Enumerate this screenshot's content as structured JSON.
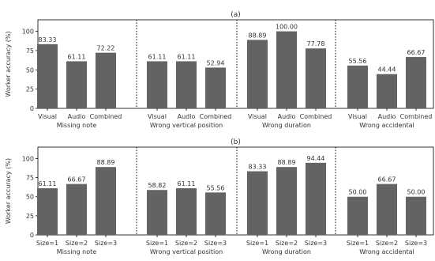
{
  "bar_color": "#636363",
  "chart_data": [
    {
      "type": "bar",
      "title": "(a)",
      "ylabel": "Worker accuracy (%)",
      "ylim": [
        0,
        115
      ],
      "yticks": [
        0,
        25,
        50,
        75,
        100
      ],
      "grid": false,
      "groups": [
        {
          "label": "Missing note",
          "categories": [
            "Visual",
            "Audio",
            "Combined"
          ],
          "values": [
            83.33,
            61.11,
            72.22
          ],
          "value_labels": [
            "83.33",
            "61.11",
            "72.22"
          ]
        },
        {
          "label": "Wrong vertical position",
          "categories": [
            "Visual",
            "Audio",
            "Combined"
          ],
          "values": [
            61.11,
            61.11,
            52.94
          ],
          "value_labels": [
            "61.11",
            "61.11",
            "52.94"
          ]
        },
        {
          "label": "Wrong duration",
          "categories": [
            "Visual",
            "Audio",
            "Combined"
          ],
          "values": [
            88.89,
            100.0,
            77.78
          ],
          "value_labels": [
            "88.89",
            "100.00",
            "77.78"
          ]
        },
        {
          "label": "Wrong accidental",
          "categories": [
            "Visual",
            "Audio",
            "Combined"
          ],
          "values": [
            55.56,
            44.44,
            66.67
          ],
          "value_labels": [
            "55.56",
            "44.44",
            "66.67"
          ]
        }
      ]
    },
    {
      "type": "bar",
      "title": "(b)",
      "ylabel": "Worker accuracy (%)",
      "ylim": [
        0,
        115
      ],
      "yticks": [
        0,
        25,
        50,
        75,
        100
      ],
      "grid": false,
      "groups": [
        {
          "label": "Missing note",
          "categories": [
            "Size=1",
            "Size=2",
            "Size=3"
          ],
          "values": [
            61.11,
            66.67,
            88.89
          ],
          "value_labels": [
            "61.11",
            "66.67",
            "88.89"
          ]
        },
        {
          "label": "Wrong vertical position",
          "categories": [
            "Size=1",
            "Size=2",
            "Size=3"
          ],
          "values": [
            58.82,
            61.11,
            55.56
          ],
          "value_labels": [
            "58.82",
            "61.11",
            "55.56"
          ]
        },
        {
          "label": "Wrong duration",
          "categories": [
            "Size=1",
            "Size=2",
            "Size=3"
          ],
          "values": [
            83.33,
            88.89,
            94.44
          ],
          "value_labels": [
            "83.33",
            "88.89",
            "94.44"
          ]
        },
        {
          "label": "Wrong accidental",
          "categories": [
            "Size=1",
            "Size=2",
            "Size=3"
          ],
          "values": [
            50.0,
            66.67,
            50.0
          ],
          "value_labels": [
            "50.00",
            "66.67",
            "50.00"
          ]
        }
      ]
    }
  ]
}
